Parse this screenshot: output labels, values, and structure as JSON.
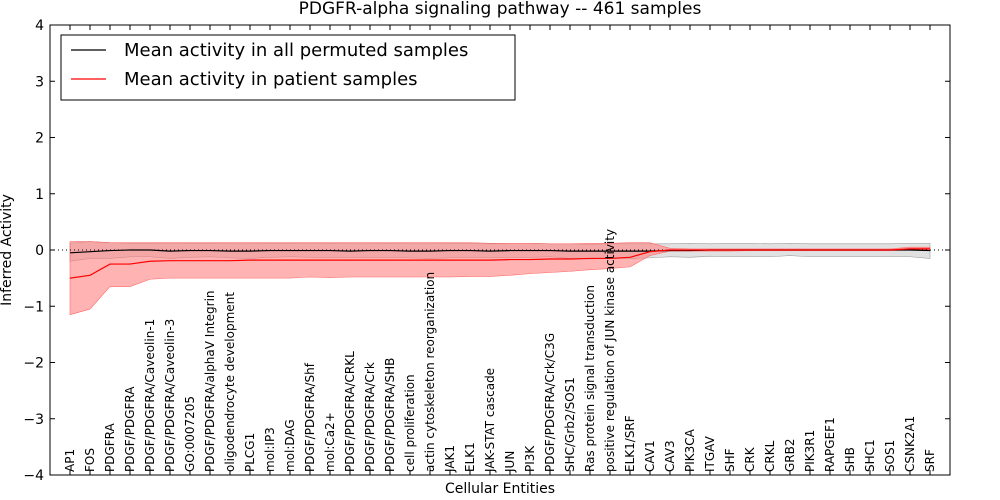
{
  "chart_data": {
    "type": "line",
    "title": "PDGFR-alpha signaling pathway -- 461 samples",
    "xlabel": "Cellular Entities",
    "ylabel": "Inferred Activity",
    "ylim": [
      -4,
      4
    ],
    "yticks": [
      -4,
      -3,
      -2,
      -1,
      0,
      1,
      2,
      3,
      4
    ],
    "ytick_labels": [
      "−4",
      "−3",
      "−2",
      "−1",
      "0",
      "1",
      "2",
      "3",
      "4"
    ],
    "grid": false,
    "reference_line": 0,
    "legend_position": "top-left",
    "categories": [
      "AP1",
      "FOS",
      "PDGFRA",
      "PDGF/PDGFRA",
      "PDGF/PDGFRA/Caveolin-1",
      "PDGF/PDGFRA/Caveolin-3",
      "GO:0007205",
      "PDGF/PDGFRA/alphaV Integrin",
      "oligodendrocyte development",
      "PLCG1",
      "mol:IP3",
      "mol:DAG",
      "PDGF/PDGFRA/Shf",
      "mol:Ca2+",
      "PDGF/PDGFRA/CRKL",
      "PDGF/PDGFRA/Crk",
      "PDGF/PDGFRA/SHB",
      "cell proliferation",
      "actin cytoskeleton reorganization",
      "JAK1",
      "ELK1",
      "JAK-STAT cascade",
      "JUN",
      "PI3K",
      "PDGF/PDGFRA/Crk/C3G",
      "SHC/Grb2/SOS1",
      "Ras protein signal transduction",
      "positive regulation of JUN kinase activity",
      "ELK1/SRF",
      "CAV1",
      "CAV3",
      "PIK3CA",
      "ITGAV",
      "SHF",
      "CRK",
      "CRKL",
      "GRB2",
      "PIK3R1",
      "RAPGEF1",
      "SHB",
      "SHC1",
      "SOS1",
      "CSNK2A1",
      "SRF"
    ],
    "series": [
      {
        "name": "Mean activity in all permuted samples",
        "color": "#000000",
        "values": [
          -0.05,
          -0.03,
          -0.01,
          0.0,
          0.0,
          -0.02,
          -0.01,
          -0.01,
          -0.02,
          -0.02,
          -0.01,
          -0.01,
          -0.01,
          -0.01,
          -0.02,
          -0.01,
          -0.01,
          -0.02,
          -0.02,
          -0.01,
          -0.01,
          -0.02,
          -0.01,
          -0.01,
          -0.01,
          -0.02,
          -0.02,
          -0.02,
          -0.02,
          -0.02,
          -0.01,
          -0.01,
          0.0,
          0.0,
          0.0,
          0.0,
          0.0,
          0.0,
          0.0,
          0.0,
          0.0,
          0.0,
          0.0,
          -0.01
        ],
        "lower": [
          -0.2,
          -0.15,
          -0.15,
          -0.12,
          -0.12,
          -0.15,
          -0.13,
          -0.12,
          -0.14,
          -0.15,
          -0.13,
          -0.12,
          -0.13,
          -0.13,
          -0.14,
          -0.13,
          -0.13,
          -0.14,
          -0.15,
          -0.14,
          -0.13,
          -0.14,
          -0.13,
          -0.13,
          -0.12,
          -0.15,
          -0.16,
          -0.15,
          -0.15,
          -0.14,
          -0.12,
          -0.13,
          -0.11,
          -0.12,
          -0.12,
          -0.12,
          -0.1,
          -0.12,
          -0.12,
          -0.12,
          -0.12,
          -0.12,
          -0.12,
          -0.15
        ],
        "upper": [
          0.12,
          0.15,
          0.13,
          0.12,
          0.12,
          0.11,
          0.12,
          0.12,
          0.11,
          0.11,
          0.12,
          0.12,
          0.11,
          0.12,
          0.11,
          0.11,
          0.12,
          0.11,
          0.11,
          0.12,
          0.12,
          0.11,
          0.12,
          0.12,
          0.11,
          0.11,
          0.1,
          0.11,
          0.11,
          0.11,
          0.11,
          0.12,
          0.11,
          0.12,
          0.12,
          0.11,
          0.12,
          0.11,
          0.11,
          0.11,
          0.11,
          0.11,
          0.12,
          0.12
        ]
      },
      {
        "name": "Mean activity in patient samples",
        "color": "#ff0000",
        "fill": "#ff8080",
        "values": [
          -0.5,
          -0.45,
          -0.25,
          -0.25,
          -0.2,
          -0.19,
          -0.19,
          -0.19,
          -0.19,
          -0.18,
          -0.18,
          -0.18,
          -0.18,
          -0.18,
          -0.18,
          -0.18,
          -0.18,
          -0.18,
          -0.18,
          -0.18,
          -0.18,
          -0.18,
          -0.17,
          -0.17,
          -0.16,
          -0.16,
          -0.15,
          -0.15,
          -0.13,
          -0.03,
          0.0,
          0.0,
          0.0,
          0.0,
          0.0,
          0.0,
          0.0,
          0.0,
          0.0,
          0.0,
          0.0,
          0.0,
          0.02,
          0.02
        ],
        "lower": [
          -1.15,
          -1.05,
          -0.65,
          -0.65,
          -0.52,
          -0.5,
          -0.5,
          -0.5,
          -0.5,
          -0.5,
          -0.5,
          -0.5,
          -0.48,
          -0.49,
          -0.48,
          -0.48,
          -0.48,
          -0.48,
          -0.48,
          -0.48,
          -0.47,
          -0.47,
          -0.45,
          -0.42,
          -0.4,
          -0.38,
          -0.35,
          -0.33,
          -0.3,
          -0.1,
          -0.02,
          -0.02,
          -0.02,
          -0.02,
          -0.01,
          -0.01,
          -0.01,
          -0.01,
          -0.01,
          -0.01,
          -0.01,
          -0.01,
          0.0,
          0.0
        ],
        "upper": [
          0.15,
          0.15,
          0.13,
          0.13,
          0.13,
          0.13,
          0.13,
          0.13,
          0.13,
          0.13,
          0.13,
          0.13,
          0.13,
          0.13,
          0.13,
          0.13,
          0.13,
          0.13,
          0.13,
          0.13,
          0.13,
          0.12,
          0.12,
          0.12,
          0.11,
          0.11,
          0.12,
          0.12,
          0.13,
          0.13,
          0.03,
          0.02,
          0.02,
          0.02,
          0.02,
          0.02,
          0.02,
          0.02,
          0.02,
          0.02,
          0.02,
          0.02,
          0.05,
          0.05
        ]
      }
    ]
  }
}
